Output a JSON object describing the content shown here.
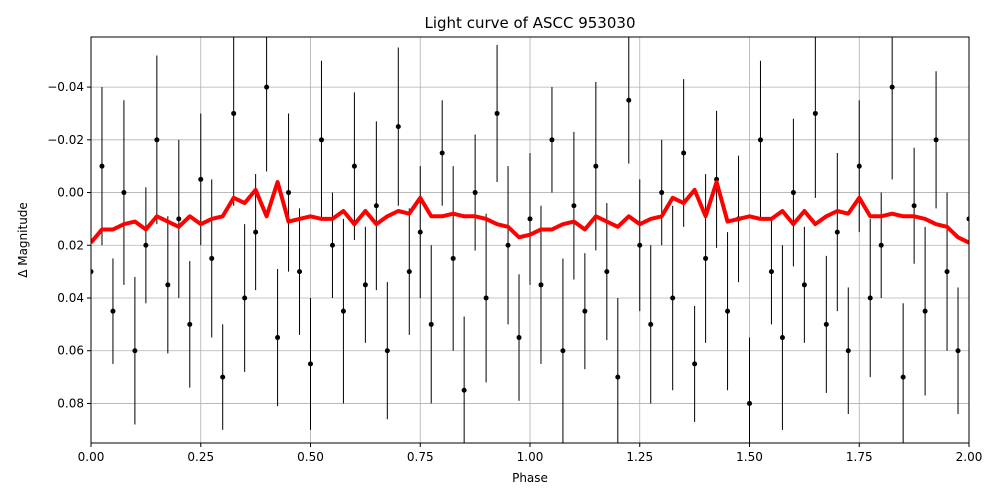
{
  "chart_data": {
    "type": "scatter",
    "title": "Light curve of ASCC 953030",
    "xlabel": "Phase",
    "ylabel": "Δ Magnitude",
    "xlim": [
      0,
      2
    ],
    "ylim": [
      -0.059,
      0.095
    ],
    "y_inverted": true,
    "grid": true,
    "xticks": [
      {
        "value": 0,
        "label": "0.00"
      },
      0.25,
      {
        "value": 0.5,
        "label": "0.50"
      },
      0.75,
      {
        "value": 1,
        "label": "1.00"
      },
      1.25,
      {
        "value": 1.5,
        "label": "1.50"
      },
      1.75,
      {
        "value": 2,
        "label": "2.00"
      }
    ],
    "yticks": [
      {
        "value": -0.04,
        "label": "−0.04"
      },
      {
        "value": -0.02,
        "label": "−0.02"
      },
      {
        "value": 0,
        "label": "0.00"
      },
      0.02,
      0.04,
      0.06,
      0.08
    ],
    "x": [
      0,
      0.025,
      0.05,
      0.075,
      0.1,
      0.125,
      0.15,
      0.175,
      0.2,
      0.225,
      0.25,
      0.275,
      0.3,
      0.325,
      0.35,
      0.375,
      0.4,
      0.425,
      0.45,
      0.475,
      0.5,
      0.525,
      0.55,
      0.575,
      0.6,
      0.625,
      0.65,
      0.675,
      0.7,
      0.725,
      0.75,
      0.775,
      0.8,
      0.825,
      0.85,
      0.875,
      0.9,
      0.925,
      0.95,
      0.975,
      1,
      1.025,
      1.05,
      1.075,
      1.1,
      1.125,
      1.15,
      1.175,
      1.2,
      1.225,
      1.25,
      1.275,
      1.3,
      1.325,
      1.35,
      1.375,
      1.4,
      1.425,
      1.45,
      1.475,
      1.5,
      1.525,
      1.55,
      1.575,
      1.6,
      1.625,
      1.65,
      1.675,
      1.7,
      1.725,
      1.75,
      1.775,
      1.8,
      1.825,
      1.85,
      1.875,
      1.9,
      1.925,
      1.95,
      1.975,
      2
    ],
    "series": [
      {
        "type": "errorbar",
        "color": "#000000",
        "values": [
          0.03,
          -0.01,
          0.045,
          0.0,
          0.06,
          0.02,
          -0.02,
          0.035,
          0.01,
          0.05,
          -0.005,
          0.025,
          0.07,
          -0.03,
          0.04,
          0.015,
          -0.04,
          0.055,
          0.0,
          0.03,
          0.065,
          -0.02,
          0.02,
          0.045,
          -0.01,
          0.035,
          0.005,
          0.06,
          -0.025,
          0.03,
          0.015,
          0.05,
          -0.015,
          0.025,
          0.075,
          0.0,
          0.04,
          -0.03,
          0.02,
          0.055,
          0.01,
          0.035,
          -0.02,
          0.06,
          0.005,
          0.045,
          -0.01,
          0.03,
          0.07,
          -0.035,
          0.02,
          0.05,
          0.0,
          0.04,
          -0.015,
          0.065,
          0.025,
          -0.005,
          0.045,
          0.01,
          0.08,
          -0.02,
          0.03,
          0.055,
          0.0,
          0.035,
          -0.03,
          0.05,
          0.015,
          0.06,
          -0.01,
          0.04,
          0.02,
          -0.04,
          0.07,
          0.005,
          0.045,
          -0.02,
          0.03,
          0.06,
          0.01
        ],
        "errors": [
          0.025,
          0.03,
          0.02,
          0.035,
          0.028,
          0.022,
          0.032,
          0.026,
          0.03,
          0.024,
          0.025,
          0.03,
          0.02,
          0.035,
          0.028,
          0.022,
          0.032,
          0.026,
          0.03,
          0.024,
          0.025,
          0.03,
          0.02,
          0.035,
          0.028,
          0.022,
          0.032,
          0.026,
          0.03,
          0.024,
          0.025,
          0.03,
          0.02,
          0.035,
          0.028,
          0.022,
          0.032,
          0.026,
          0.03,
          0.024,
          0.025,
          0.03,
          0.02,
          0.035,
          0.028,
          0.022,
          0.032,
          0.026,
          0.03,
          0.024,
          0.025,
          0.03,
          0.02,
          0.035,
          0.028,
          0.022,
          0.032,
          0.026,
          0.03,
          0.024,
          0.025,
          0.03,
          0.02,
          0.035,
          0.028,
          0.022,
          0.032,
          0.026,
          0.03,
          0.024,
          0.025,
          0.03,
          0.02,
          0.035,
          0.028,
          0.022,
          0.032,
          0.026,
          0.03,
          0.024,
          0.027
        ]
      },
      {
        "type": "line",
        "color": "#ff0000",
        "values": [
          0.019,
          0.014,
          0.014,
          0.012,
          0.011,
          0.014,
          0.009,
          0.011,
          0.013,
          0.009,
          0.012,
          0.01,
          0.009,
          0.002,
          0.004,
          -0.001,
          0.009,
          -0.004,
          0.011,
          0.01,
          0.009,
          0.01,
          0.01,
          0.007,
          0.012,
          0.007,
          0.012,
          0.009,
          0.007,
          0.008,
          0.002,
          0.009,
          0.009,
          0.008,
          0.009,
          0.009,
          0.01,
          0.012,
          0.013,
          0.017,
          0.016,
          0.014,
          0.014,
          0.012,
          0.011,
          0.014,
          0.009,
          0.011,
          0.013,
          0.009,
          0.012,
          0.01,
          0.009,
          0.002,
          0.004,
          -0.001,
          0.009,
          -0.004,
          0.011,
          0.01,
          0.009,
          0.01,
          0.01,
          0.007,
          0.012,
          0.007,
          0.012,
          0.009,
          0.007,
          0.008,
          0.002,
          0.009,
          0.009,
          0.008,
          0.009,
          0.009,
          0.01,
          0.012,
          0.013,
          0.017,
          0.019
        ]
      }
    ]
  }
}
